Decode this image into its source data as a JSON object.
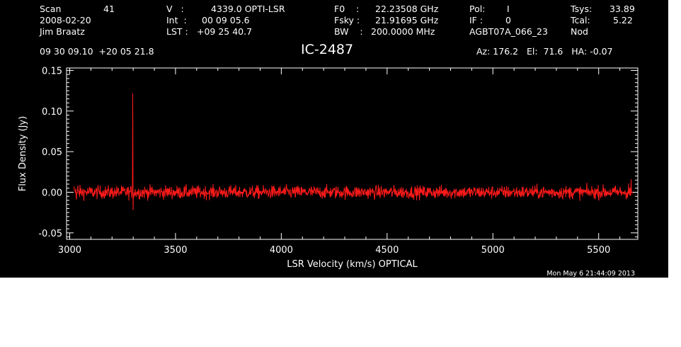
{
  "header": {
    "scan_label": "Scan",
    "scan_number": "41",
    "date": "2008-02-20",
    "observer": "Jim Braatz",
    "v_label": "V   :",
    "v_value": "4339.0 OPTI-LSR",
    "int_label": "Int  :",
    "int_value": "00 09 05.6",
    "lst_label": "LST :",
    "lst_value": "+09 25 40.7",
    "f0_label": "F0    :",
    "f0_value": "22.23508 GHz",
    "fsky_label": "Fsky :",
    "fsky_value": "21.91695 GHz",
    "bw_label": "BW    :",
    "bw_value": "200.0000 MHz",
    "pol_label": "Pol:",
    "pol_value": "I",
    "if_label": "IF :",
    "if_value": "0",
    "project": "AGBT07A_066_23",
    "tsys_label": "Tsys:",
    "tsys_value": "33.89",
    "tcal_label": "Tcal:",
    "tcal_value": "5.22",
    "proc": "Nod",
    "coords": "09 30 09.10  +20 05 21.8",
    "source": "IC-2487",
    "az_el_ha": "Az: 176.2   El:  71.6   HA: -0.07",
    "timestamp": "Mon May  6 21:44:09 2013"
  },
  "chart_data": {
    "type": "line",
    "xlabel": "LSR Velocity (km/s) OPTICAL",
    "ylabel": "Flux Density (Jy)",
    "xlim": [
      2985,
      5685
    ],
    "ylim": [
      -0.058,
      0.153
    ],
    "x_ticks": [
      3000,
      3500,
      4000,
      4500,
      5000,
      5500
    ],
    "x_tick_labels": [
      "3000",
      "3500",
      "4000",
      "4500",
      "5000",
      "5500"
    ],
    "y_ticks": [
      -0.05,
      0.0,
      0.05,
      0.1,
      0.15
    ],
    "y_tick_labels": [
      "-0.05",
      "0.00",
      "0.05",
      "0.10",
      "0.15"
    ],
    "grid": false,
    "line_color": "#ff1a1a",
    "axis_color": "#ffffff",
    "series": [
      {
        "x_range": [
          3020,
          5660
        ],
        "noise_rms": 0.004,
        "features": [
          {
            "x": 3298,
            "peak": 0.122,
            "min": -0.022
          }
        ]
      }
    ]
  }
}
